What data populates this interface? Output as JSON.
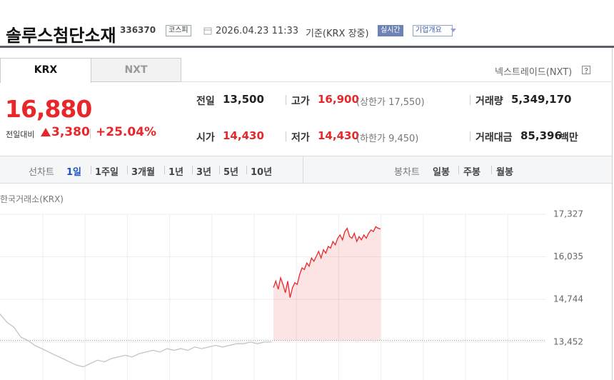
{
  "header": {
    "title": "솔루스첨단소재",
    "code": "336370",
    "market": "코스피",
    "datetime": "2026.04.23 11:33",
    "basis": "기준(KRX 장중)",
    "realtime": "실시간",
    "company": "기업개요"
  },
  "tabs": [
    "KRX",
    "NXT"
  ],
  "nxt_link": "넥스트레이드(NXT)",
  "price": {
    "current": "16,880",
    "change_label": "전일대비",
    "change": "3,380",
    "rate": "+25.04%"
  },
  "stats": [
    {
      "label": "전일",
      "value": "13,500"
    },
    {
      "label": "고가",
      "value": "16,900",
      "limit": "(상한가 17,550)"
    },
    {
      "label": "거래량",
      "value": "5,349,170"
    },
    {
      "label": "시가",
      "value": "14,430"
    },
    {
      "label": "저가",
      "value": "14,430",
      "limit": "(하한가 9,450)"
    },
    {
      "label": "거래대금",
      "value": "85,396",
      "unit": "백만"
    }
  ],
  "line_chart_tabs": {
    "label": "선차트",
    "items": [
      "1일",
      "1주일",
      "3개월",
      "1년",
      "3년",
      "5년",
      "10년"
    ]
  },
  "candle_chart_tabs": {
    "label": "봉차트",
    "items": [
      "일봉",
      "주봉",
      "월봉"
    ]
  },
  "chart_data": {
    "type": "line",
    "source": "한국거래소(KRX)",
    "ylim": [
      12300,
      17650
    ],
    "yticks": [
      {
        "value": 17327,
        "label": "17,327"
      },
      {
        "value": 16035,
        "label": "16,035"
      },
      {
        "value": 14744,
        "label": "14,744"
      },
      {
        "value": 13452,
        "label": "13,452"
      }
    ],
    "baseline": 13500,
    "grid": true,
    "series": [
      {
        "color": "#c4c4c4",
        "values": [
          14300,
          14050,
          13900,
          13600,
          13500,
          13350,
          13250,
          13150,
          13050,
          12950,
          12850,
          12750,
          12700,
          12800,
          12900,
          12850,
          12950,
          13000,
          13050,
          13000,
          13100,
          13150,
          13200,
          13150,
          13250,
          13200,
          13250,
          13200,
          13300,
          13250,
          13300,
          13350,
          13300,
          13350,
          13400,
          13400,
          13450,
          13400,
          13450,
          13450
        ]
      },
      {
        "color": "#e8272b",
        "values": [
          15100,
          15300,
          15050,
          15400,
          15200,
          14950,
          15300,
          14800,
          15100,
          15250,
          15200,
          15500,
          15700,
          15650,
          15850,
          15750,
          16000,
          15900,
          16050,
          16200,
          16000,
          16250,
          16150,
          16350,
          16300,
          16500,
          16400,
          16600,
          16700,
          16550,
          16800,
          16900,
          16650,
          16600,
          16750,
          16500,
          16650,
          16550,
          16700,
          16600,
          16750,
          16850,
          16800,
          16950,
          16900,
          16880
        ]
      }
    ]
  }
}
